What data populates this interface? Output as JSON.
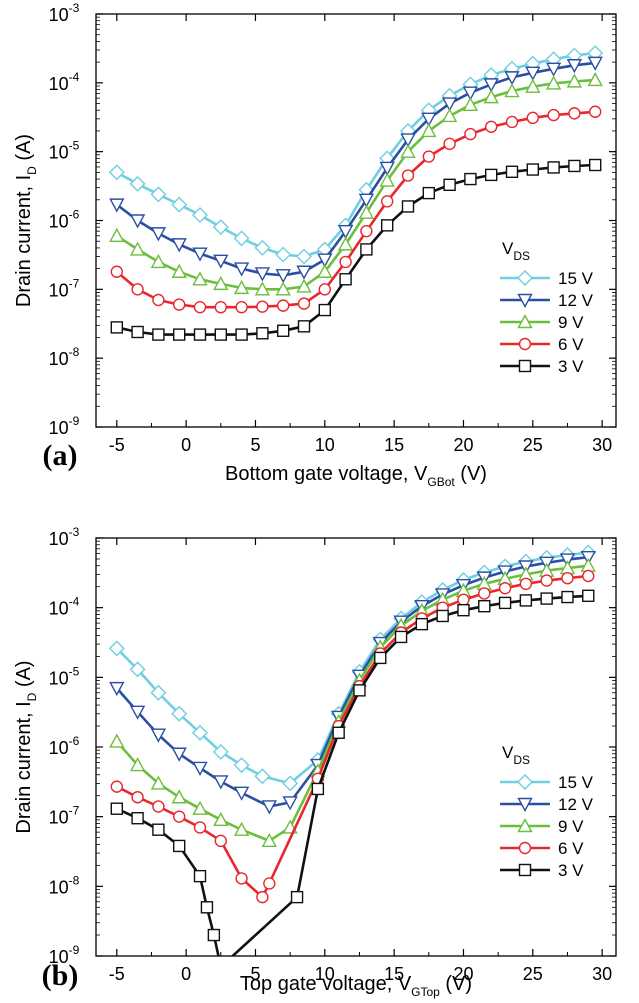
{
  "chart_data": [
    {
      "type": "line",
      "panel_label": "(a)",
      "xlabel": "Bottom gate voltage, V",
      "xlabel_sub": "GBot",
      "xlabel_unit": "(V)",
      "ylabel": "Drain current, I",
      "ylabel_sub": "D",
      "ylabel_unit": "(A)",
      "y_scale": "log",
      "xlim": [
        -6.5,
        31
      ],
      "ylim_exp": [
        -9,
        -3
      ],
      "x_ticks": [
        -5,
        0,
        5,
        10,
        15,
        20,
        25,
        30
      ],
      "y_tick_exps": [
        -9,
        -8,
        -7,
        -6,
        -5,
        -4,
        -3
      ],
      "grid": false,
      "legend_title": "V",
      "legend_title_sub": "DS",
      "legend_position": "center-right",
      "series": [
        {
          "name": "15 V",
          "color": "#6ecfe0",
          "marker": "diamond",
          "x": [
            -5,
            -3.5,
            -2,
            -0.5,
            1,
            2.5,
            4,
            5.5,
            7,
            8.5,
            10,
            11.5,
            13,
            14.5,
            16,
            17.5,
            19,
            20.5,
            22,
            23.5,
            25,
            26.5,
            28,
            29.5
          ],
          "y": [
            5e-06,
            3.4e-06,
            2.4e-06,
            1.7e-06,
            1.2e-06,
            8e-07,
            5.5e-07,
            4e-07,
            3.2e-07,
            3e-07,
            3.8e-07,
            8.5e-07,
            2.8e-06,
            8e-06,
            2e-05,
            4e-05,
            6.5e-05,
            9.5e-05,
            0.00013,
            0.00016,
            0.00019,
            0.00022,
            0.00025,
            0.00027
          ]
        },
        {
          "name": "12 V",
          "color": "#2b4fa3",
          "marker": "triangle-down",
          "x": [
            -5,
            -3.5,
            -2,
            -0.5,
            1,
            2.5,
            4,
            5.5,
            7,
            8.5,
            10,
            11.5,
            13,
            14.5,
            16,
            17.5,
            19,
            20.5,
            22,
            23.5,
            25,
            26.5,
            28,
            29.5
          ],
          "y": [
            1.7e-06,
            1e-06,
            6.5e-07,
            4.5e-07,
            3.3e-07,
            2.6e-07,
            2e-07,
            1.7e-07,
            1.6e-07,
            1.8e-07,
            2.7e-07,
            7e-07,
            2e-06,
            5.8e-06,
            1.5e-05,
            3e-05,
            5e-05,
            7.2e-05,
            9.5e-05,
            0.00012,
            0.00014,
            0.00016,
            0.00018,
            0.000195
          ]
        },
        {
          "name": "9 V",
          "color": "#6cbf3c",
          "marker": "triangle-up",
          "x": [
            -5,
            -3.5,
            -2,
            -0.5,
            1,
            2.5,
            4,
            5.5,
            7,
            8.5,
            10,
            11.5,
            13,
            14.5,
            16,
            17.5,
            19,
            20.5,
            22,
            23.5,
            25,
            26.5,
            28,
            29.5
          ],
          "y": [
            6e-07,
            3.8e-07,
            2.5e-07,
            1.8e-07,
            1.4e-07,
            1.2e-07,
            1.05e-07,
            1e-07,
            1e-07,
            1.1e-07,
            1.8e-07,
            4.5e-07,
            1.3e-06,
            3.8e-06,
            1e-05,
            2e-05,
            3.3e-05,
            4.8e-05,
            6.2e-05,
            7.6e-05,
            8.8e-05,
            9.8e-05,
            0.000105,
            0.00011
          ]
        },
        {
          "name": "6 V",
          "color": "#e8282e",
          "marker": "circle",
          "x": [
            -5,
            -3.5,
            -2,
            -0.5,
            1,
            2.5,
            4,
            5.5,
            7,
            8.5,
            10,
            11.5,
            13,
            14.5,
            16,
            17.5,
            19,
            20.5,
            22,
            23.5,
            25,
            26.5,
            28,
            29.5
          ],
          "y": [
            1.8e-07,
            1e-07,
            7e-08,
            6e-08,
            5.5e-08,
            5.5e-08,
            5.5e-08,
            5.6e-08,
            5.8e-08,
            6.2e-08,
            1e-07,
            2.5e-07,
            7e-07,
            1.9e-06,
            4.5e-06,
            8.5e-06,
            1.3e-05,
            1.8e-05,
            2.3e-05,
            2.7e-05,
            3.1e-05,
            3.4e-05,
            3.6e-05,
            3.8e-05
          ]
        },
        {
          "name": "3 V",
          "color": "#111111",
          "marker": "square",
          "x": [
            -5,
            -3.5,
            -2,
            -0.5,
            1,
            2.5,
            4,
            5.5,
            7,
            8.5,
            10,
            11.5,
            13,
            14.5,
            16,
            17.5,
            19,
            20.5,
            22,
            23.5,
            25,
            26.5,
            28,
            29.5
          ],
          "y": [
            2.8e-08,
            2.4e-08,
            2.2e-08,
            2.2e-08,
            2.2e-08,
            2.2e-08,
            2.2e-08,
            2.3e-08,
            2.5e-08,
            2.9e-08,
            5e-08,
            1.4e-07,
            3.8e-07,
            8.5e-07,
            1.6e-06,
            2.5e-06,
            3.3e-06,
            4e-06,
            4.6e-06,
            5.1e-06,
            5.5e-06,
            5.9e-06,
            6.2e-06,
            6.4e-06
          ]
        }
      ]
    },
    {
      "type": "line",
      "panel_label": "(b)",
      "xlabel": "Top gate voltage, V",
      "xlabel_sub": "GTop",
      "xlabel_unit": "(V)",
      "ylabel": "Drain current, I",
      "ylabel_sub": "D",
      "ylabel_unit": "(A)",
      "y_scale": "log",
      "xlim": [
        -6.5,
        31
      ],
      "ylim_exp": [
        -9,
        -3
      ],
      "x_ticks": [
        -5,
        0,
        5,
        10,
        15,
        20,
        25,
        30
      ],
      "y_tick_exps": [
        -9,
        -8,
        -7,
        -6,
        -5,
        -4,
        -3
      ],
      "grid": false,
      "legend_title": "V",
      "legend_title_sub": "DS",
      "legend_position": "center-right",
      "series": [
        {
          "name": "15 V",
          "color": "#6ecfe0",
          "marker": "diamond",
          "x": [
            -5,
            -3.5,
            -2,
            -0.5,
            1,
            2.5,
            4,
            5.5,
            7.5,
            9.5,
            11,
            12.5,
            14,
            15.5,
            17,
            18.5,
            20,
            21.5,
            23,
            24.5,
            26,
            27.5,
            29
          ],
          "y": [
            2.6e-05,
            1.3e-05,
            6e-06,
            3e-06,
            1.6e-06,
            8.5e-07,
            5.5e-07,
            3.8e-07,
            3e-07,
            6.5e-07,
            3e-06,
            1.2e-05,
            3.5e-05,
            7e-05,
            0.00012,
            0.00018,
            0.00025,
            0.00032,
            0.00039,
            0.00046,
            0.00052,
            0.00057,
            0.00062
          ]
        },
        {
          "name": "12 V",
          "color": "#2b4fa3",
          "marker": "triangle-down",
          "x": [
            -5,
            -3.5,
            -2,
            -0.5,
            1,
            2.5,
            4,
            6,
            7.5,
            9.5,
            11,
            12.5,
            14,
            15.5,
            17,
            18.5,
            20,
            21.5,
            23,
            24.5,
            26,
            27.5,
            29
          ],
          "y": [
            7e-06,
            3.2e-06,
            1.5e-06,
            8e-07,
            5e-07,
            3.2e-07,
            2.2e-07,
            1.4e-07,
            1.6e-07,
            5.5e-07,
            2.7e-06,
            1.05e-05,
            3.1e-05,
            6.3e-05,
            0.000105,
            0.000155,
            0.00021,
            0.00027,
            0.00033,
            0.00039,
            0.00044,
            0.00049,
            0.00053
          ]
        },
        {
          "name": "9 V",
          "color": "#6cbf3c",
          "marker": "triangle-up",
          "x": [
            -5,
            -3.5,
            -2,
            -0.5,
            1,
            2.5,
            4,
            6,
            7.5,
            9.5,
            11,
            12.5,
            14,
            15.5,
            17,
            18.5,
            20,
            21.5,
            23,
            24.5,
            26,
            27.5,
            29
          ],
          "y": [
            1.2e-06,
            5.5e-07,
            3e-07,
            1.9e-07,
            1.3e-07,
            9e-08,
            6.5e-08,
            4.5e-08,
            7e-08,
            4.5e-07,
            2.3e-06,
            9e-06,
            2.7e-05,
            5.5e-05,
            9e-05,
            0.00013,
            0.000175,
            0.00022,
            0.00026,
            0.0003,
            0.00034,
            0.00037,
            0.0004
          ]
        },
        {
          "name": "6 V",
          "color": "#e8282e",
          "marker": "circle",
          "x": [
            -5,
            -3.5,
            -2,
            -0.5,
            1,
            2.5,
            4,
            5.5,
            6,
            9.5,
            11,
            12.5,
            14,
            15.5,
            17,
            18.5,
            20,
            21.5,
            23,
            24.5,
            26,
            27.5,
            29
          ],
          "y": [
            2.7e-07,
            1.9e-07,
            1.4e-07,
            1e-07,
            7e-08,
            4.5e-08,
            1.3e-08,
            7e-09,
            1.1e-08,
            3.5e-07,
            2e-06,
            7.5e-06,
            2.2e-05,
            4.4e-05,
            7e-05,
            0.0001,
            0.00013,
            0.00016,
            0.00019,
            0.00022,
            0.000245,
            0.000265,
            0.000285
          ]
        },
        {
          "name": "3 V",
          "color": "#111111",
          "marker": "square",
          "x": [
            -5,
            -3.5,
            -2,
            -0.5,
            1,
            1.5,
            2,
            2.5,
            8,
            9.5,
            11,
            12.5,
            14,
            15.5,
            17,
            18.5,
            20,
            21.5,
            23,
            24.5,
            26,
            27.5,
            29
          ],
          "y": [
            1.3e-07,
            9.5e-08,
            6.5e-08,
            3.8e-08,
            1.4e-08,
            5e-09,
            2e-09,
            7e-10,
            7e-09,
            2.5e-07,
            1.6e-06,
            6.5e-06,
            1.9e-05,
            3.8e-05,
            5.8e-05,
            7.6e-05,
            9.2e-05,
            0.000105,
            0.000117,
            0.000127,
            0.000135,
            0.000142,
            0.000148
          ]
        }
      ]
    }
  ]
}
